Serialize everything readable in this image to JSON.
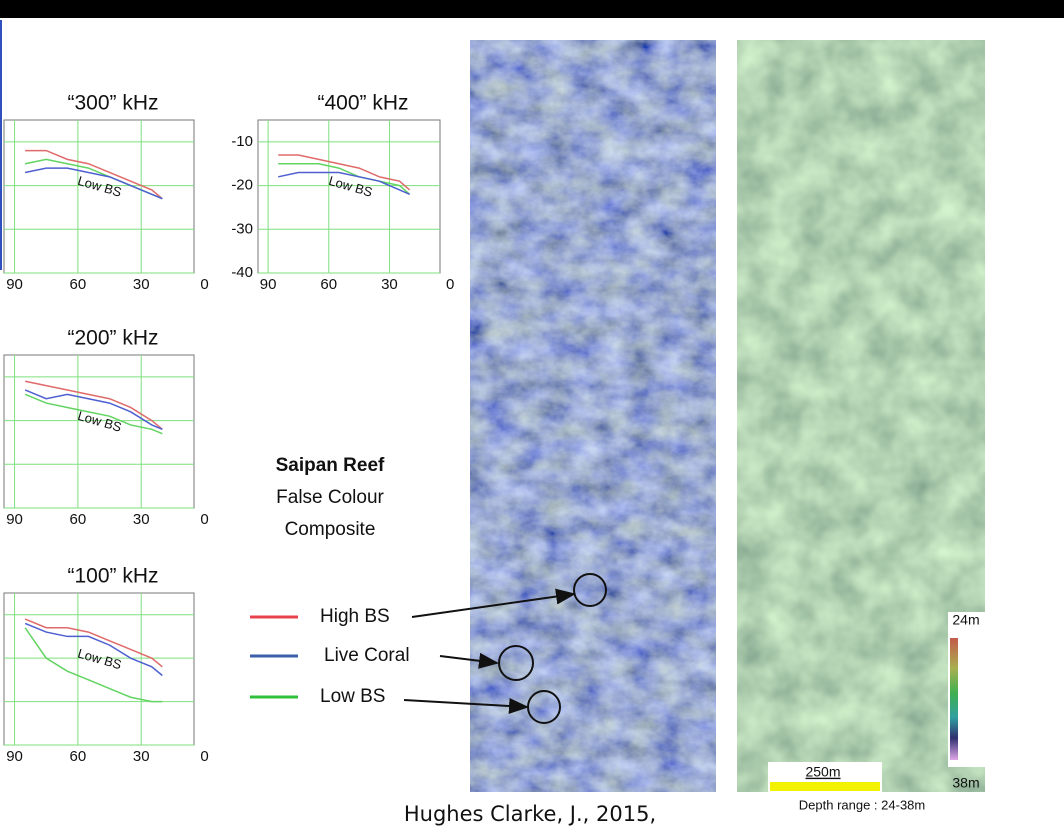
{
  "charts": [
    {
      "type": "line",
      "title": "“300” kHz",
      "annotation": "Low BS",
      "xlim": [
        95,
        5
      ],
      "ylim": [
        -40,
        -5
      ],
      "xticks": [
        90,
        60,
        30,
        0
      ],
      "yticks": [
        -10,
        -20,
        -30,
        -40
      ],
      "ytick_labels": false,
      "x": [
        85,
        75,
        65,
        55,
        45,
        35,
        25,
        20
      ],
      "series": [
        {
          "color": "#e06a6a",
          "values": [
            -12,
            -12,
            -14,
            -15,
            -17,
            -19,
            -21,
            -23
          ]
        },
        {
          "color": "#62d462",
          "values": [
            -15,
            -14,
            -15,
            -16,
            -18,
            -20,
            -22,
            -23
          ]
        },
        {
          "color": "#4e5fd0",
          "values": [
            -17,
            -16,
            -16,
            -17,
            -18,
            -20,
            -22,
            -23
          ]
        }
      ]
    },
    {
      "type": "line",
      "title": "“400” kHz",
      "annotation": "Low BS",
      "xlim": [
        95,
        5
      ],
      "ylim": [
        -40,
        -5
      ],
      "xticks": [
        90,
        60,
        30,
        0
      ],
      "yticks": [
        -10,
        -20,
        -30,
        -40
      ],
      "ytick_labels": true,
      "x": [
        85,
        75,
        65,
        55,
        45,
        35,
        25,
        20
      ],
      "series": [
        {
          "color": "#e06a6a",
          "values": [
            -13,
            -13,
            -14,
            -15,
            -16,
            -18,
            -19,
            -21
          ]
        },
        {
          "color": "#62d462",
          "values": [
            -15,
            -15,
            -15,
            -16,
            -18,
            -19,
            -20,
            -22
          ]
        },
        {
          "color": "#4e5fd0",
          "values": [
            -18,
            -17,
            -17,
            -17,
            -18,
            -19,
            -21,
            -22
          ]
        }
      ]
    },
    {
      "type": "line",
      "title": "“200” kHz",
      "annotation": "Low BS",
      "xlim": [
        95,
        5
      ],
      "ylim": [
        -40,
        -5
      ],
      "xticks": [
        90,
        60,
        30,
        0
      ],
      "yticks": [
        -10,
        -20,
        -30,
        -40
      ],
      "ytick_labels": false,
      "x": [
        85,
        75,
        65,
        55,
        45,
        35,
        25,
        20
      ],
      "series": [
        {
          "color": "#e06a6a",
          "values": [
            -11,
            -12,
            -13,
            -14,
            -15,
            -17,
            -20,
            -22
          ]
        },
        {
          "color": "#62d462",
          "values": [
            -14,
            -16,
            -17,
            -18,
            -19,
            -21,
            -22,
            -23
          ]
        },
        {
          "color": "#4e5fd0",
          "values": [
            -13,
            -15,
            -14,
            -15,
            -16,
            -18,
            -21,
            -22
          ]
        }
      ]
    },
    {
      "type": "line",
      "title": "“100” kHz",
      "annotation": "Low BS",
      "xlim": [
        95,
        5
      ],
      "ylim": [
        -40,
        -5
      ],
      "xticks": [
        90,
        60,
        30,
        0
      ],
      "yticks": [
        -10,
        -20,
        -30,
        -40
      ],
      "ytick_labels": false,
      "x": [
        85,
        75,
        65,
        55,
        45,
        35,
        25,
        20
      ],
      "series": [
        {
          "color": "#e06a6a",
          "values": [
            -11,
            -13,
            -13,
            -14,
            -16,
            -18,
            -20,
            -22
          ]
        },
        {
          "color": "#4e5fd0",
          "values": [
            -12,
            -14,
            -15,
            -15,
            -17,
            -20,
            -22,
            -24
          ]
        },
        {
          "color": "#62d462",
          "values": [
            -13,
            -20,
            -23,
            -25,
            -27,
            -29,
            -30,
            -30
          ]
        }
      ]
    }
  ],
  "legend": [
    {
      "label": "High BS",
      "color": "#e8424c"
    },
    {
      "label": "Live Coral",
      "color": "#3a5fa8"
    },
    {
      "label": "Low BS",
      "color": "#2fbf3a"
    }
  ],
  "composite": {
    "title": "Saipan Reef",
    "lines": [
      "False Colour",
      "Composite"
    ]
  },
  "colorbar": {
    "top_label": "24m",
    "bottom_label": "38m"
  },
  "scale_bar": "250m",
  "depth_range": "Depth range : 24-38m",
  "citation": "Hughes Clarke, J., 2015,"
}
